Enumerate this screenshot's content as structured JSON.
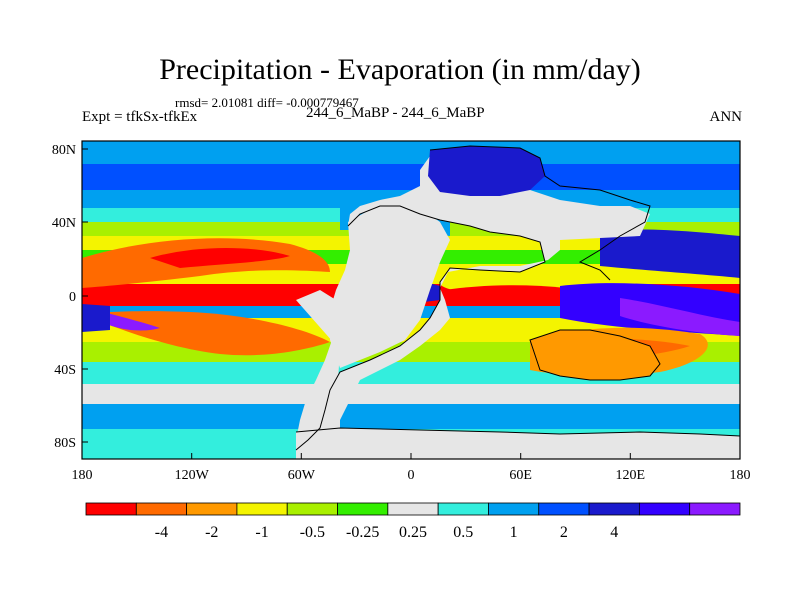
{
  "header": {
    "title": "Precipitation - Evaporation (in mm/day)",
    "stats": "rmsd= 2.01081 diff= -0.000779467",
    "expt_label": "Expt = tfkSx-tfkEx",
    "cases": "244_6_MaBP - 244_6_MaBP",
    "season": "ANN"
  },
  "axes": {
    "lon_ticks": [
      "180",
      "120W",
      "60W",
      "0",
      "60E",
      "120E",
      "180"
    ],
    "lat_ticks": [
      "80N",
      "40N",
      "0",
      "40S",
      "80S"
    ]
  },
  "colorbar": {
    "colors": [
      "#ff0000",
      "#ff6a00",
      "#ff9900",
      "#f4f400",
      "#a9f000",
      "#33ee00",
      "#e6e6e6",
      "#33eedd",
      "#00a0f0",
      "#0050ff",
      "#1a1acc",
      "#3300ff",
      "#8b1aff"
    ],
    "labels": [
      "-4",
      "-2",
      "-1",
      "-0.5",
      "-0.25",
      "0.25",
      "0.5",
      "1",
      "2",
      "4"
    ]
  }
}
